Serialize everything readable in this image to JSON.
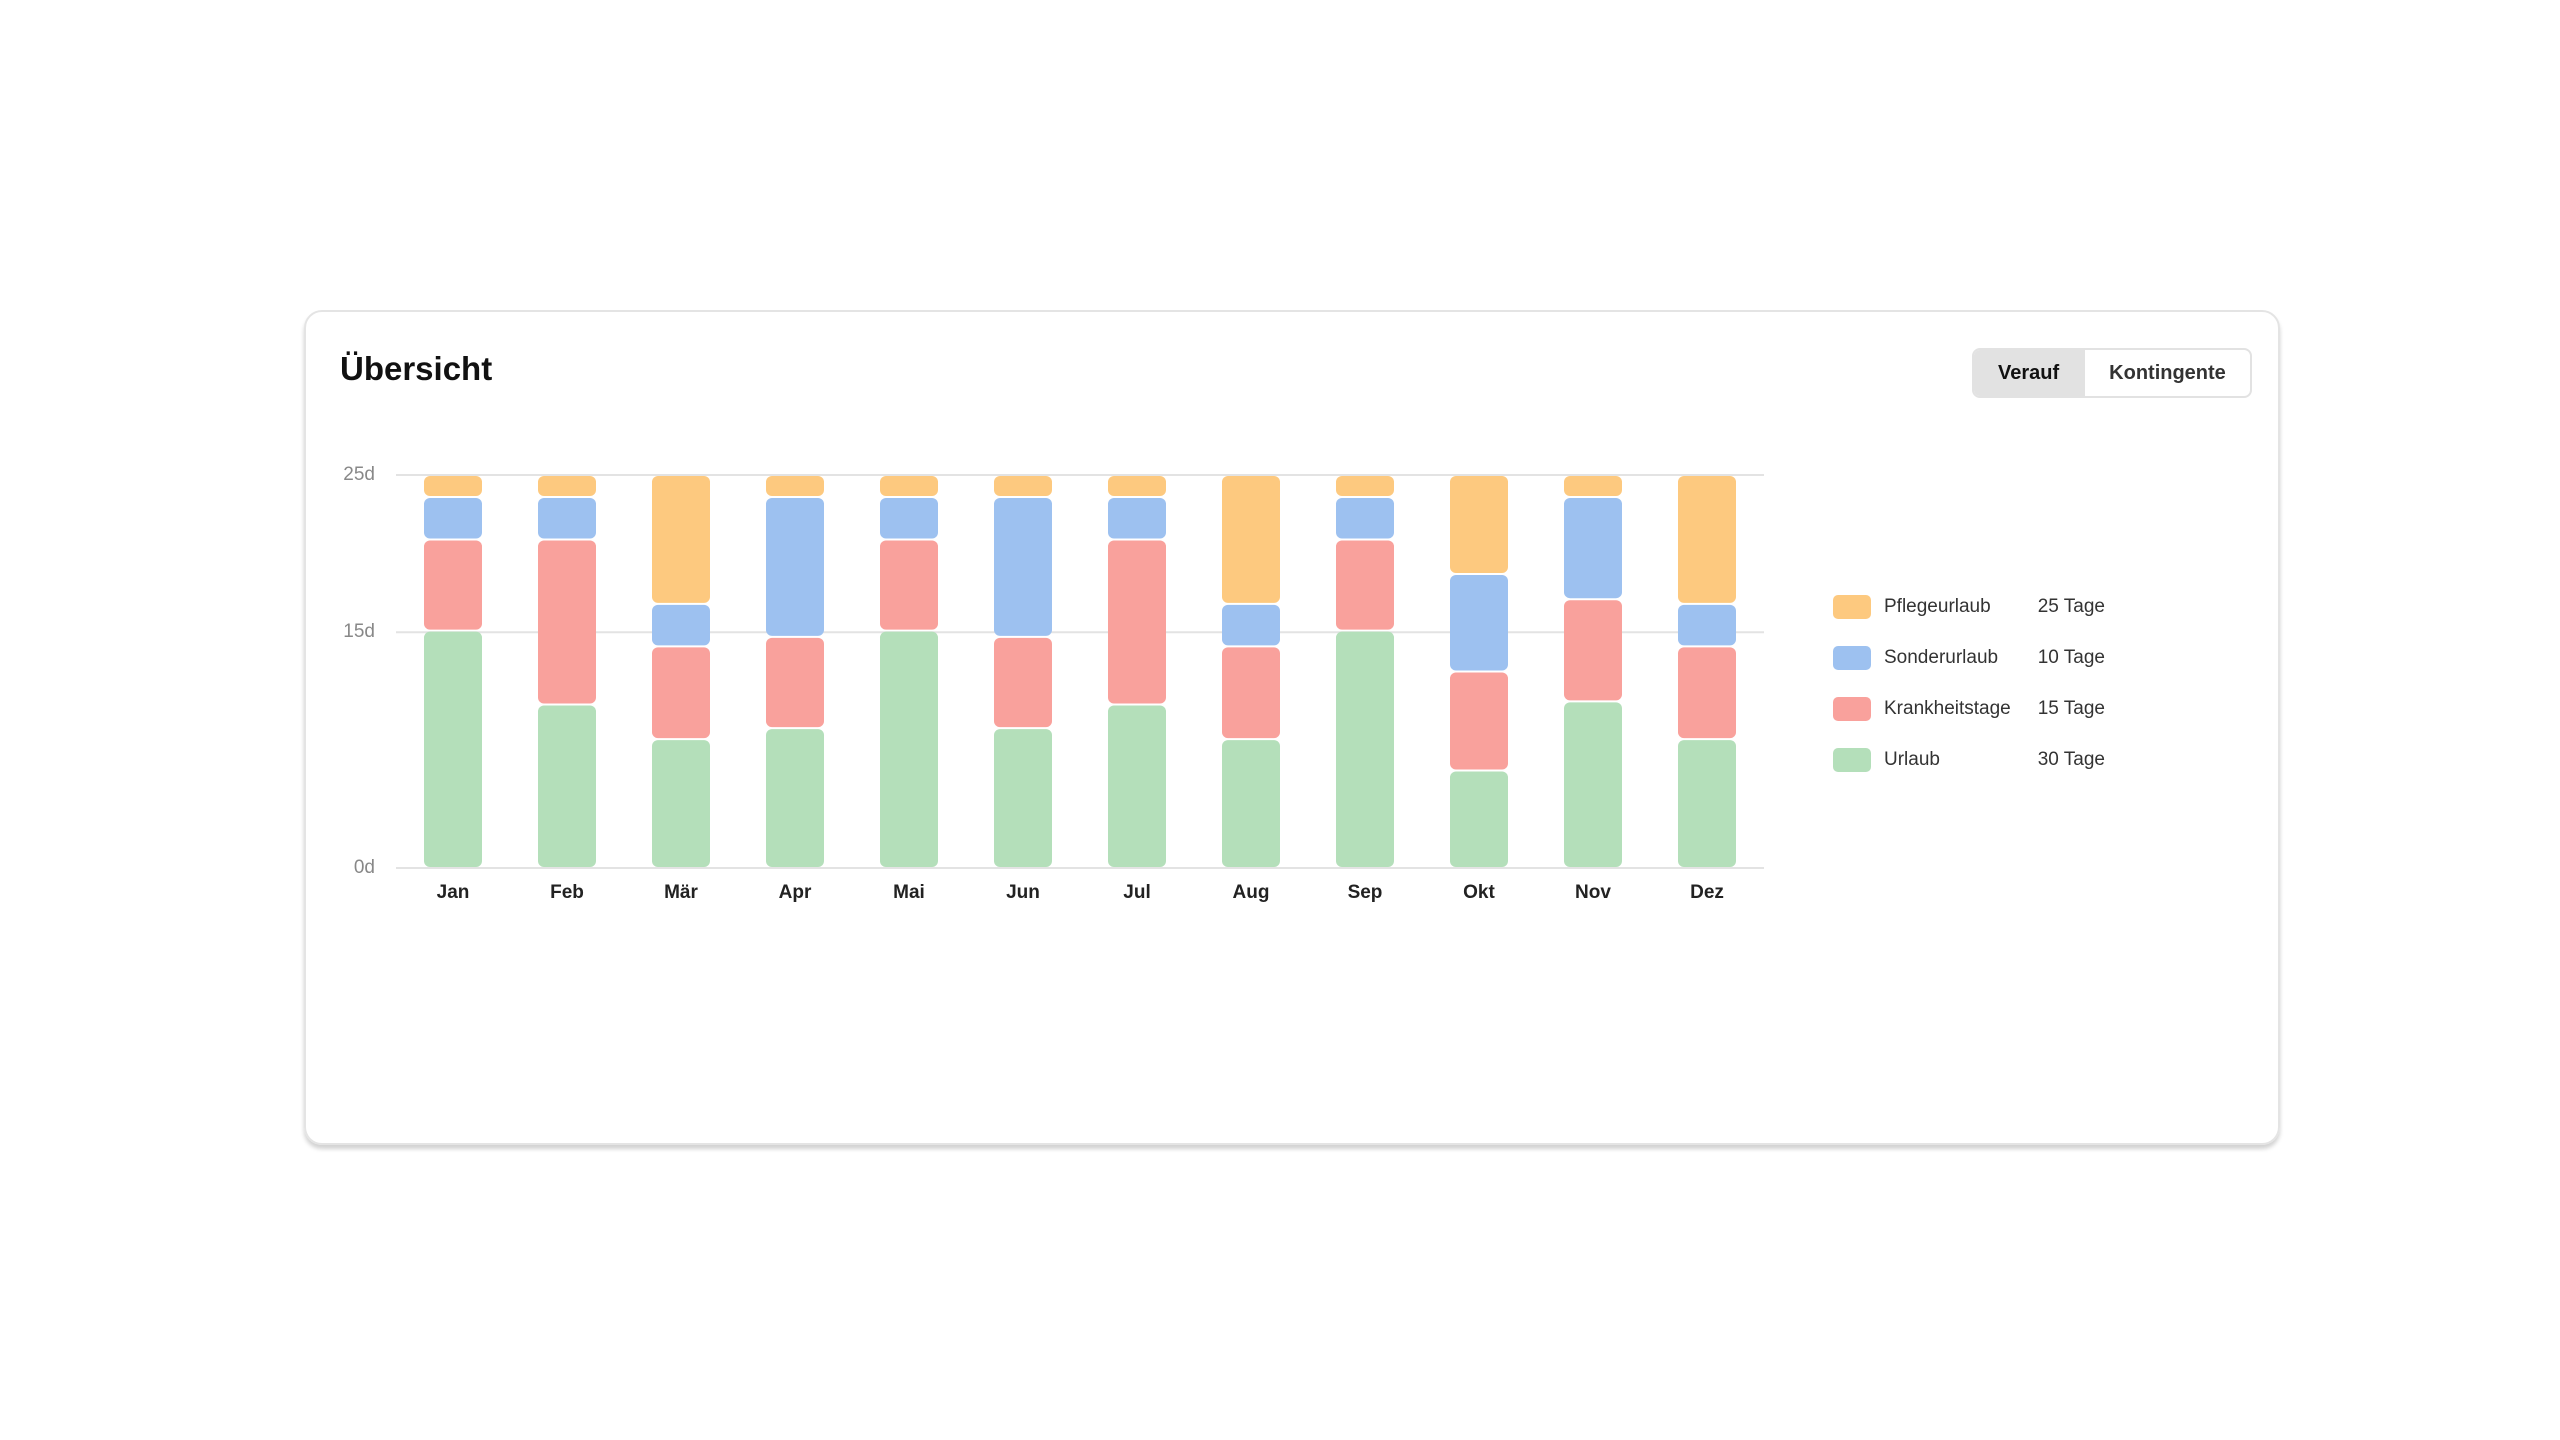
{
  "header": {
    "title": "Übersicht",
    "tabs": [
      "Verauf",
      "Kontingente"
    ]
  },
  "chart_data": {
    "type": "stacked_bar",
    "categories": [
      "Jan",
      "Feb",
      "Mär",
      "Apr",
      "Mai",
      "Jun",
      "Jul",
      "Aug",
      "Sep",
      "Okt",
      "Nov",
      "Dez"
    ],
    "series": [
      {
        "name": "Pflegeurlaub",
        "total_label": "25 Tage",
        "color": "#fdc97f",
        "values": [
          1.4,
          1.4,
          8.2,
          1.4,
          1.4,
          1.4,
          1.4,
          8.2,
          1.4,
          6.3,
          1.4,
          8.2
        ]
      },
      {
        "name": "Sonderurlaub",
        "total_label": "10 Tage",
        "color": "#9dc1f0",
        "values": [
          2.7,
          2.7,
          2.7,
          8.9,
          2.7,
          8.9,
          2.7,
          2.7,
          2.7,
          6.2,
          6.5,
          2.7
        ]
      },
      {
        "name": "Krankheitstage",
        "total_label": "15 Tage",
        "color": "#f9a19c",
        "values": [
          5.8,
          10.5,
          5.9,
          5.8,
          5.8,
          5.8,
          10.5,
          5.9,
          5.8,
          6.3,
          6.5,
          5.9
        ]
      },
      {
        "name": "Urlaub",
        "total_label": "30 Tage",
        "color": "#b4dfba",
        "values": [
          15.1,
          10.4,
          8.2,
          8.9,
          15.1,
          8.9,
          10.4,
          8.2,
          15.1,
          6.2,
          10.6,
          8.2
        ]
      }
    ],
    "ylim": [
      0,
      25
    ],
    "yticks": [
      {
        "value": 0,
        "label": "0d"
      },
      {
        "value": 15,
        "label": "15d"
      },
      {
        "value": 25,
        "label": "25d"
      }
    ],
    "grid": true,
    "legend": "right"
  }
}
